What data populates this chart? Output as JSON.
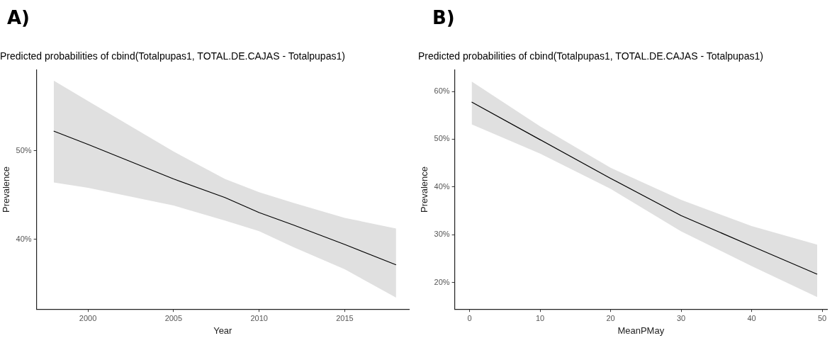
{
  "chart_data": [
    {
      "type": "line",
      "title": "Predicted probabilities of cbind(Totalpupas1, TOTAL.DE.CAJAS - Totalpupas1)",
      "xlabel": "Year",
      "ylabel": "Prevalence",
      "annotations": [
        "A)"
      ],
      "x": [
        1998,
        2000,
        2005,
        2008,
        2010,
        2012,
        2015,
        2018
      ],
      "series": [
        {
          "color": "#000000",
          "values": [
            52.2,
            50.7,
            46.8,
            44.7,
            43.0,
            41.6,
            39.4,
            37.1
          ],
          "lower": [
            46.4,
            45.8,
            43.8,
            42.1,
            40.9,
            39.1,
            36.6,
            33.4
          ],
          "upper": [
            57.9,
            55.6,
            49.9,
            46.8,
            45.3,
            44.1,
            42.4,
            41.2
          ]
        }
      ],
      "xlim": [
        1997,
        2018.75
      ],
      "ylim": [
        32.1,
        59.1
      ],
      "xticks": [
        2000,
        2005,
        2010,
        2015
      ],
      "yticks": [
        {
          "value": 40,
          "label": "40%"
        },
        {
          "value": 50,
          "label": "50%"
        }
      ],
      "grid": false,
      "legend": false
    },
    {
      "type": "line",
      "title": "Predicted probabilities of cbind(Totalpupas1, TOTAL.DE.CAJAS - Totalpupas1)",
      "xlabel": "MeanPMay",
      "ylabel": "Prevalence",
      "annotations": [
        "B)"
      ],
      "x": [
        0.3,
        10,
        20,
        30,
        40,
        49.3
      ],
      "series": [
        {
          "color": "#000000",
          "values": [
            57.8,
            49.9,
            41.8,
            34.0,
            27.6,
            21.7
          ],
          "lower": [
            53.1,
            47.0,
            39.6,
            30.7,
            23.4,
            16.9
          ],
          "upper": [
            62.1,
            52.7,
            44.0,
            37.3,
            31.8,
            27.9
          ]
        }
      ],
      "xlim": [
        -2.1,
        50.7
      ],
      "ylim": [
        14.4,
        64.5
      ],
      "xticks": [
        0,
        10,
        20,
        30,
        40,
        50
      ],
      "yticks": [
        {
          "value": 20,
          "label": "20%"
        },
        {
          "value": 30,
          "label": "30%"
        },
        {
          "value": 40,
          "label": "40%"
        },
        {
          "value": 50,
          "label": "50%"
        },
        {
          "value": 60,
          "label": "60%"
        }
      ],
      "grid": false,
      "legend": false
    }
  ]
}
